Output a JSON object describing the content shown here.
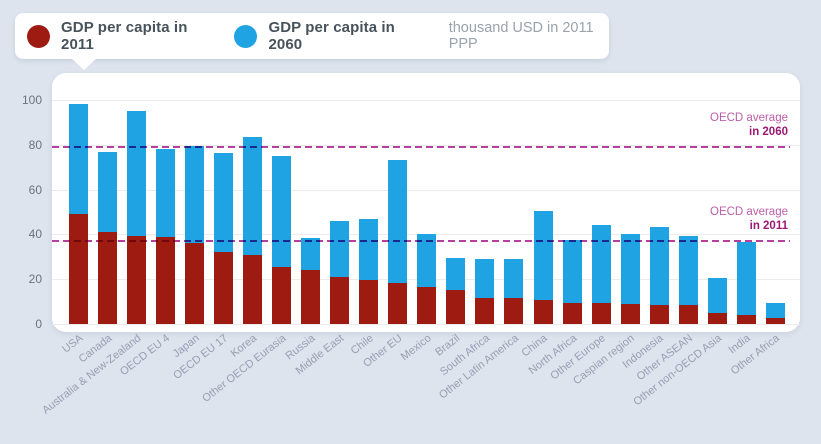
{
  "legend": {
    "series1": "GDP per capita in 2011",
    "series2": "GDP per capita in 2060",
    "units": "thousand USD in 2011 PPP"
  },
  "annotations": {
    "avg2060": {
      "line1": "OECD average",
      "line2": "in 2060",
      "value": 79
    },
    "avg2011": {
      "line1": "OECD average",
      "line2": "in 2011",
      "value": 37
    }
  },
  "colors": {
    "bar_2011": "#9e1b12",
    "bar_2060": "#1fa3e2",
    "reference_line": "#b63f9e",
    "background": "#dde4ee",
    "card": "#ffffff",
    "gridline": "#ebebeb"
  },
  "chart_data": {
    "type": "bar",
    "title": "",
    "ylabel": "thousand USD in 2011 PPP",
    "grid": true,
    "ylim": [
      0,
      105
    ],
    "yticks": [
      0,
      20,
      40,
      60,
      80,
      100
    ],
    "categories": [
      "USA",
      "Canada",
      "Australia & New-Zealand",
      "OECD EU 4",
      "Japan",
      "OECD EU 17",
      "Korea",
      "Other OECD Eurasia",
      "Russia",
      "Middle East",
      "Chile",
      "Other EU",
      "Mexico",
      "Brazil",
      "South Africa",
      "Other Latin America",
      "China",
      "North Africa",
      "Other Europe",
      "Caspian region",
      "Indonesia",
      "Other ASEAN",
      "Other non-OECD Asia",
      "India",
      "Other Africa"
    ],
    "series": [
      {
        "name": "GDP per capita in 2011",
        "color": "#9e1b12",
        "values": [
          49,
          41,
          39.5,
          39,
          36,
          32,
          31,
          25.5,
          24,
          21,
          19.5,
          18.5,
          16.5,
          15,
          11.5,
          11.5,
          10.5,
          9.5,
          9.5,
          9,
          8.5,
          8.5,
          5,
          4,
          2.5
        ]
      },
      {
        "name": "GDP per capita in 2060",
        "color": "#1fa3e2",
        "values": [
          98,
          77,
          95,
          78,
          79.5,
          76.5,
          83.5,
          75,
          38.5,
          46,
          47,
          73,
          40,
          29.5,
          29,
          29,
          50.5,
          37.5,
          44,
          40,
          43.5,
          39.5,
          20.5,
          36.5,
          9.5
        ]
      }
    ],
    "reference_lines": [
      {
        "label": "OECD average in 2060",
        "value": 79
      },
      {
        "label": "OECD average in 2011",
        "value": 37
      }
    ]
  }
}
